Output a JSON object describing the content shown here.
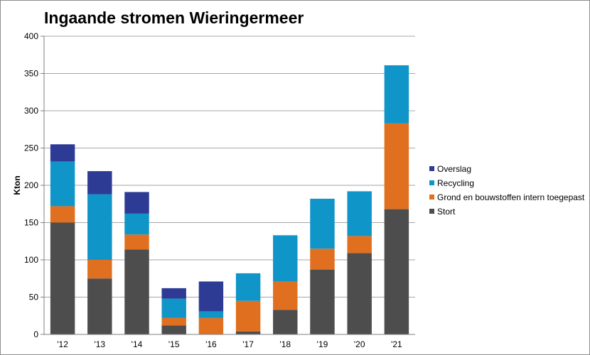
{
  "chart_data": {
    "type": "bar",
    "stacked": true,
    "title": "Ingaande stromen Wieringermeer",
    "xlabel": "",
    "ylabel": "Kton",
    "ylim": [
      0,
      400
    ],
    "yticks": [
      0,
      50,
      100,
      150,
      200,
      250,
      300,
      350,
      400
    ],
    "grid": true,
    "legend_position": "right",
    "categories": [
      "'12",
      "'13",
      "'14",
      "'15",
      "'16",
      "'17",
      "'18",
      "'19",
      "'20",
      "'21"
    ],
    "series": [
      {
        "name": "Stort",
        "color": "#4d4d4d",
        "values": [
          150,
          75,
          114,
          12,
          0,
          4,
          33,
          87,
          109,
          168
        ]
      },
      {
        "name": "Grond en bouwstoffen intern toegepast",
        "color": "#e07020",
        "values": [
          22,
          25,
          20,
          10,
          22,
          41,
          38,
          28,
          23,
          115
        ]
      },
      {
        "name": "Recycling",
        "color": "#0f95c8",
        "values": [
          60,
          88,
          28,
          26,
          9,
          37,
          62,
          67,
          60,
          78
        ]
      },
      {
        "name": "Overslag",
        "color": "#2e3b95",
        "values": [
          23,
          31,
          29,
          14,
          40,
          0,
          0,
          0,
          0,
          0
        ]
      }
    ],
    "legend_order": [
      "Overslag",
      "Recycling",
      "Grond en bouwstoffen intern toegepast",
      "Stort"
    ]
  }
}
